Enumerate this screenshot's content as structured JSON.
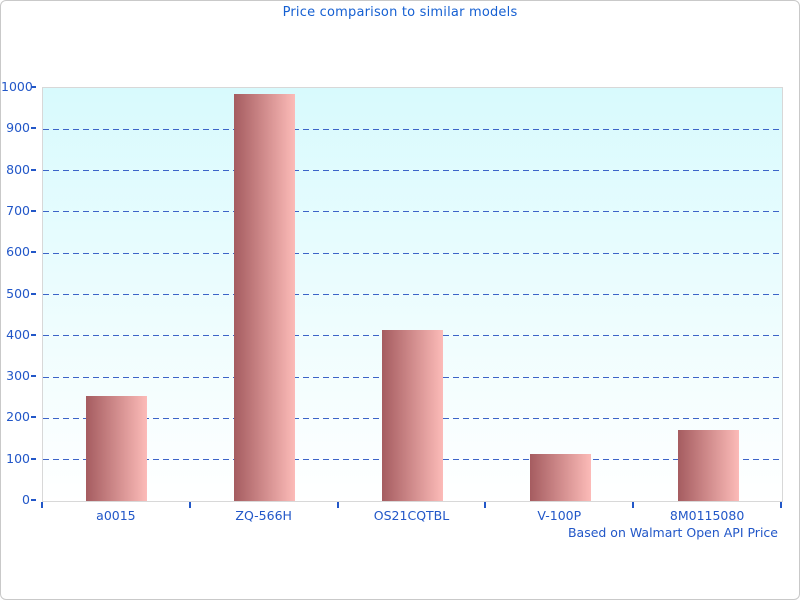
{
  "chart_data": {
    "type": "bar",
    "title": "Price comparison to similar models",
    "categories": [
      "a0015",
      "ZQ-566H",
      "OS21CQTBL",
      "V-100P",
      "8M0115080"
    ],
    "values": [
      255,
      985,
      414,
      115,
      172
    ],
    "xlabel": "",
    "ylabel": "",
    "ylim": [
      0,
      1000
    ],
    "ytick_step": 100,
    "ytick_labels": [
      "0",
      "100",
      "200",
      "300",
      "400",
      "500",
      "600",
      "700",
      "800",
      "900",
      "1000"
    ],
    "grid": "horizontal dashed lines at every 100",
    "legend": "none",
    "source_note": "Based on Walmart Open API Price"
  },
  "colors": {
    "title_text": "#1660d2",
    "axis_label_text": "#2257c8",
    "gridline": "#3c64c8",
    "tick_mark": "#2257c8",
    "bar_gradient_left": "#a55c60",
    "bar_gradient_right": "#fcbbb8",
    "plot_bg_top": "#d8fafd",
    "plot_bg_bottom": "#ffffff",
    "plot_border": "#d8d8d8",
    "figure_border": "#c9c9c9",
    "figure_bg": "#ffffff"
  }
}
